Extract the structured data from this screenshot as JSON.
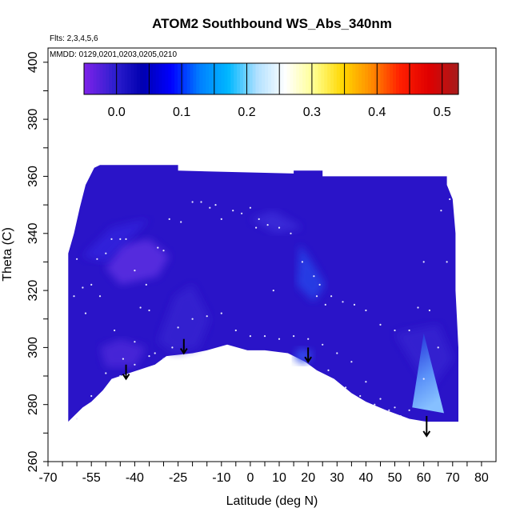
{
  "chart_data": {
    "type": "heatmap",
    "title": "ATOM2 Southbound WS_Abs_340nm",
    "xlabel": "Latitude (deg N)",
    "ylabel": "Theta (C)",
    "annotations": {
      "flights": "Flts: 2,3,4,5,6",
      "dates": "MMDD: 0129,0201,0203,0205,0210"
    },
    "xlim": [
      -70,
      85
    ],
    "ylim": [
      260,
      405
    ],
    "x_ticks": [
      -70,
      -55,
      -40,
      -25,
      -10,
      0,
      10,
      20,
      30,
      40,
      50,
      60,
      70,
      80
    ],
    "y_ticks": [
      260,
      280,
      300,
      320,
      340,
      360,
      380,
      400
    ],
    "colorbar": {
      "range": [
        -0.05,
        0.525
      ],
      "ticks": [
        "0.0",
        "0.1",
        "0.2",
        "0.3",
        "0.4",
        "0.5"
      ],
      "tick_values": [
        0.0,
        0.1,
        0.2,
        0.3,
        0.4,
        0.5
      ],
      "palette": [
        "#7a22e8",
        "#2f1fcf",
        "#0000b0",
        "#0000ff",
        "#0080ff",
        "#00b8ff",
        "#b0e0ff",
        "#ffffff",
        "#ffff90",
        "#ffd700",
        "#ff8c00",
        "#ff2000",
        "#e00000",
        "#aa1a1a"
      ]
    },
    "field_color": "#2a14c8",
    "field_upper": [
      {
        "x": -63,
        "y": 333
      },
      {
        "x": -61,
        "y": 340
      },
      {
        "x": -59,
        "y": 349
      },
      {
        "x": -57,
        "y": 357
      },
      {
        "x": -54,
        "y": 363
      },
      {
        "x": -52,
        "y": 364
      },
      {
        "x": -50,
        "y": 364
      },
      {
        "x": -25,
        "y": 364
      },
      {
        "x": -25,
        "y": 362
      },
      {
        "x": 15,
        "y": 361
      },
      {
        "x": 15,
        "y": 362
      },
      {
        "x": 25,
        "y": 362
      },
      {
        "x": 25,
        "y": 360
      },
      {
        "x": 68,
        "y": 360
      },
      {
        "x": 68,
        "y": 357
      },
      {
        "x": 70,
        "y": 352
      },
      {
        "x": 71,
        "y": 340
      },
      {
        "x": 71,
        "y": 320
      },
      {
        "x": 72,
        "y": 300
      },
      {
        "x": 72,
        "y": 274
      }
    ],
    "field_lower": [
      {
        "x": 72,
        "y": 274
      },
      {
        "x": 61,
        "y": 274
      },
      {
        "x": 55,
        "y": 275
      },
      {
        "x": 47,
        "y": 278
      },
      {
        "x": 40,
        "y": 281
      },
      {
        "x": 35,
        "y": 284
      },
      {
        "x": 29,
        "y": 289
      },
      {
        "x": 23,
        "y": 292
      },
      {
        "x": 19,
        "y": 295
      },
      {
        "x": 13,
        "y": 298
      },
      {
        "x": 5,
        "y": 299
      },
      {
        "x": -1,
        "y": 299
      },
      {
        "x": -8,
        "y": 301
      },
      {
        "x": -15,
        "y": 299
      },
      {
        "x": -20,
        "y": 298
      },
      {
        "x": -29,
        "y": 297
      },
      {
        "x": -33,
        "y": 294
      },
      {
        "x": -39,
        "y": 292
      },
      {
        "x": -45,
        "y": 290
      },
      {
        "x": -48,
        "y": 289
      },
      {
        "x": -51,
        "y": 285
      },
      {
        "x": -55,
        "y": 281
      },
      {
        "x": -58,
        "y": 279
      },
      {
        "x": -62,
        "y": 275
      },
      {
        "x": -63,
        "y": 274
      }
    ],
    "patches": [
      {
        "points": [
          [
            -50,
            328
          ],
          [
            -45,
            336
          ],
          [
            -35,
            338
          ],
          [
            -28,
            332
          ],
          [
            -32,
            325
          ],
          [
            -45,
            322
          ]
        ],
        "color": "#5a2ee0"
      },
      {
        "points": [
          [
            -58,
            332
          ],
          [
            -48,
            342
          ],
          [
            -35,
            345
          ],
          [
            -50,
            330
          ]
        ],
        "color": "#3323dc"
      },
      {
        "points": [
          [
            -52,
            300
          ],
          [
            -45,
            303
          ],
          [
            -36,
            300
          ],
          [
            -40,
            293
          ],
          [
            -50,
            293
          ]
        ],
        "color": "#4a28d8"
      },
      {
        "points": [
          [
            -32,
            302
          ],
          [
            -26,
            318
          ],
          [
            -20,
            322
          ],
          [
            -14,
            310
          ],
          [
            -18,
            300
          ],
          [
            -26,
            298
          ]
        ],
        "color": "#3424d0"
      },
      {
        "points": [
          [
            17,
            336
          ],
          [
            20,
            332
          ],
          [
            26,
            322
          ],
          [
            22,
            316
          ],
          [
            16,
            322
          ]
        ],
        "color": "#2540e6"
      },
      {
        "points": [
          [
            17,
            300
          ],
          [
            22,
            298
          ],
          [
            19,
            294
          ],
          [
            15,
            296
          ]
        ],
        "color": "#3550ee"
      },
      {
        "points": [
          [
            0,
            345
          ],
          [
            8,
            348
          ],
          [
            18,
            342
          ],
          [
            9,
            340
          ]
        ],
        "color": "#3a2ad8"
      },
      {
        "points": [
          [
            50,
            305
          ],
          [
            65,
            308
          ],
          [
            70,
            296
          ],
          [
            62,
            285
          ]
        ],
        "color": "#3424d0"
      }
    ],
    "triangle": {
      "points": [
        [
          60,
          305
        ],
        [
          56,
          279
        ],
        [
          67,
          277
        ]
      ],
      "colors": [
        "#1e2ad8",
        "#5a90f8",
        "#86c0ff"
      ]
    },
    "arrows": [
      {
        "x": -43,
        "y_top": 294,
        "y_bottom": 289
      },
      {
        "x": -23,
        "y_top": 303,
        "y_bottom": 298
      },
      {
        "x": 20,
        "y_top": 300,
        "y_bottom": 295
      },
      {
        "x": 61,
        "y_top": 276,
        "y_bottom": 269
      }
    ],
    "points": [
      {
        "x": -60,
        "y": 331
      },
      {
        "x": -58,
        "y": 321
      },
      {
        "x": -55,
        "y": 322
      },
      {
        "x": -53,
        "y": 331
      },
      {
        "x": -50,
        "y": 333
      },
      {
        "x": -48,
        "y": 338
      },
      {
        "x": -45,
        "y": 338
      },
      {
        "x": -43,
        "y": 338
      },
      {
        "x": -40,
        "y": 327
      },
      {
        "x": -38,
        "y": 314
      },
      {
        "x": -35,
        "y": 313
      },
      {
        "x": -32,
        "y": 335
      },
      {
        "x": -30,
        "y": 334
      },
      {
        "x": -28,
        "y": 345
      },
      {
        "x": -24,
        "y": 344
      },
      {
        "x": -20,
        "y": 351
      },
      {
        "x": -17,
        "y": 351
      },
      {
        "x": -14,
        "y": 349
      },
      {
        "x": -12,
        "y": 350
      },
      {
        "x": -10,
        "y": 345
      },
      {
        "x": -6,
        "y": 348
      },
      {
        "x": -3,
        "y": 347
      },
      {
        "x": 0,
        "y": 349
      },
      {
        "x": 3,
        "y": 345
      },
      {
        "x": 6,
        "y": 343
      },
      {
        "x": 10,
        "y": 342
      },
      {
        "x": 14,
        "y": 340
      },
      {
        "x": 18,
        "y": 330
      },
      {
        "x": 22,
        "y": 325
      },
      {
        "x": 24,
        "y": 322
      },
      {
        "x": 28,
        "y": 318
      },
      {
        "x": 32,
        "y": 316
      },
      {
        "x": 36,
        "y": 315
      },
      {
        "x": 40,
        "y": 313
      },
      {
        "x": 45,
        "y": 308
      },
      {
        "x": 50,
        "y": 306
      },
      {
        "x": 55,
        "y": 306
      },
      {
        "x": 58,
        "y": 314
      },
      {
        "x": 62,
        "y": 313
      },
      {
        "x": 66,
        "y": 348
      },
      {
        "x": 69,
        "y": 352
      },
      {
        "x": -47,
        "y": 306
      },
      {
        "x": -40,
        "y": 302
      },
      {
        "x": -35,
        "y": 297
      },
      {
        "x": -30,
        "y": 296
      },
      {
        "x": -25,
        "y": 307
      },
      {
        "x": -20,
        "y": 310
      },
      {
        "x": -15,
        "y": 311
      },
      {
        "x": -10,
        "y": 312
      },
      {
        "x": -5,
        "y": 306
      },
      {
        "x": 0,
        "y": 304
      },
      {
        "x": 5,
        "y": 304
      },
      {
        "x": 10,
        "y": 303
      },
      {
        "x": 15,
        "y": 304
      },
      {
        "x": 20,
        "y": 303
      },
      {
        "x": 25,
        "y": 301
      },
      {
        "x": 30,
        "y": 298
      },
      {
        "x": 35,
        "y": 295
      },
      {
        "x": 40,
        "y": 288
      },
      {
        "x": 45,
        "y": 282
      },
      {
        "x": 50,
        "y": 279
      },
      {
        "x": 55,
        "y": 278
      },
      {
        "x": 60,
        "y": 289
      },
      {
        "x": -60,
        "y": 275
      },
      {
        "x": -55,
        "y": 283
      },
      {
        "x": -50,
        "y": 291
      },
      {
        "x": -45,
        "y": 290
      },
      {
        "x": -40,
        "y": 294
      },
      {
        "x": -33,
        "y": 298
      },
      {
        "x": -27,
        "y": 300
      },
      {
        "x": 27,
        "y": 292
      },
      {
        "x": 33,
        "y": 286
      },
      {
        "x": 38,
        "y": 283
      },
      {
        "x": 43,
        "y": 280
      },
      {
        "x": 48,
        "y": 278
      },
      {
        "x": 52,
        "y": 276
      },
      {
        "x": -61,
        "y": 318
      },
      {
        "x": -57,
        "y": 312
      },
      {
        "x": -52,
        "y": 318
      },
      {
        "x": 23,
        "y": 318
      },
      {
        "x": 26,
        "y": 315
      },
      {
        "x": 65,
        "y": 300
      },
      {
        "x": 68,
        "y": 330
      },
      {
        "x": 60,
        "y": 330
      },
      {
        "x": -44,
        "y": 296
      },
      {
        "x": -36,
        "y": 322
      },
      {
        "x": 2,
        "y": 342
      },
      {
        "x": 8,
        "y": 320
      }
    ]
  }
}
